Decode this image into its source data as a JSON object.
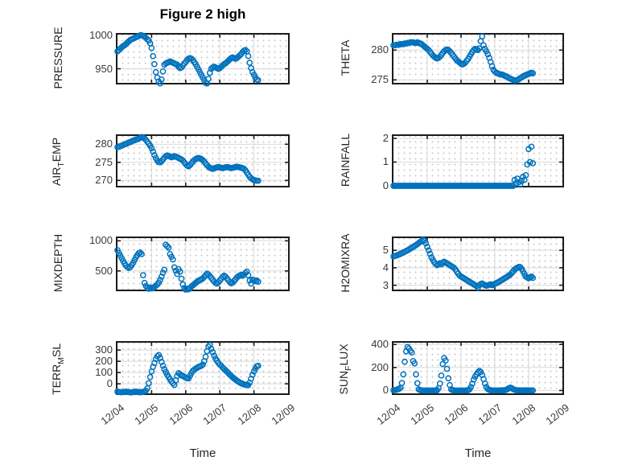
{
  "figure": {
    "title": "Figure 2 high",
    "xlabel": "Time",
    "marker_color": "#0072BD",
    "axis_color": "#1c1c1c",
    "grid_color": "#d9d9d9",
    "text_color": "#3a3a3a",
    "x_tick_labels": [
      "12/04",
      "12/05",
      "12/06",
      "12/07",
      "12/08",
      "12/09"
    ],
    "x_range_days": [
      0,
      5
    ],
    "grid": true,
    "minor_grid": true
  },
  "chart_data": [
    {
      "type": "scatter",
      "id": "pressure",
      "ylabel": {
        "pre": "PRESSURE",
        "sub": "",
        "post": ""
      },
      "yticks": [
        950,
        1000
      ],
      "ylim": [
        929,
        1001
      ],
      "x_hours_start": 0,
      "x_hours_step": 1,
      "values": [
        976,
        978,
        980,
        982,
        984,
        985,
        987,
        989,
        991,
        993,
        994,
        995,
        996,
        997,
        998,
        999,
        1000,
        1000,
        999,
        998,
        996,
        994,
        992,
        988,
        981,
        969,
        957,
        945,
        937,
        931,
        928,
        934,
        946,
        956,
        958,
        959,
        960,
        961,
        960,
        959,
        958,
        957,
        956,
        953,
        951,
        952,
        955,
        958,
        960,
        963,
        965,
        966,
        965,
        963,
        960,
        957,
        953,
        949,
        945,
        941,
        937,
        933,
        929,
        928,
        935,
        944,
        950,
        952,
        953,
        952,
        951,
        950,
        951,
        953,
        955,
        957,
        958,
        960,
        962,
        964,
        966,
        967,
        966,
        965,
        966,
        968,
        970,
        972,
        975,
        977,
        978,
        976,
        969,
        959,
        951,
        945,
        941,
        937,
        934,
        933
      ]
    },
    {
      "type": "scatter",
      "id": "theta",
      "ylabel": {
        "pre": "THETA",
        "sub": "",
        "post": ""
      },
      "yticks": [
        275,
        280
      ],
      "ylim": [
        274.5,
        282.6
      ],
      "x_hours_start": 0,
      "x_hours_step": 1,
      "values": [
        280.8,
        280.8,
        280.9,
        280.9,
        280.9,
        281.0,
        281.0,
        281.0,
        281.1,
        281.1,
        281.2,
        281.2,
        281.3,
        281.3,
        281.3,
        281.2,
        281.2,
        281.3,
        281.2,
        281.1,
        281.0,
        280.8,
        280.6,
        280.4,
        280.2,
        280.0,
        279.7,
        279.4,
        279.1,
        278.9,
        278.7,
        278.6,
        278.7,
        278.9,
        279.2,
        279.5,
        279.8,
        280.0,
        280.1,
        280.0,
        279.8,
        279.5,
        279.2,
        278.9,
        278.6,
        278.3,
        278.1,
        277.9,
        277.7,
        277.6,
        277.7,
        277.9,
        278.2,
        278.5,
        278.9,
        279.3,
        279.7,
        280.0,
        280.2,
        280.1,
        280.0,
        280.3,
        281.5,
        282.3,
        280.8,
        280.2,
        279.8,
        279.3,
        278.7,
        278.0,
        277.3,
        276.7,
        276.4,
        276.2,
        276.1,
        276.0,
        275.9,
        275.9,
        275.8,
        275.7,
        275.6,
        275.5,
        275.3,
        275.2,
        275.1,
        275.0,
        274.9,
        274.9,
        275.0,
        275.1,
        275.3,
        275.4,
        275.6,
        275.7,
        275.8,
        275.9,
        276.0,
        276.1,
        276.2,
        276.1
      ]
    },
    {
      "type": "scatter",
      "id": "air_temp",
      "ylabel": {
        "pre": "AIR",
        "sub": "T",
        "post": "EMP"
      },
      "yticks": [
        270,
        275,
        280
      ],
      "ylim": [
        268.5,
        282.3
      ],
      "x_hours_start": 0,
      "x_hours_step": 1,
      "values": [
        279.2,
        279.3,
        279.5,
        279.6,
        279.8,
        280.0,
        280.1,
        280.3,
        280.5,
        280.6,
        280.8,
        281.0,
        281.1,
        281.3,
        281.4,
        281.6,
        281.8,
        282.0,
        281.9,
        281.6,
        281.2,
        280.7,
        280.2,
        279.6,
        278.9,
        278.0,
        277.0,
        276.2,
        275.5,
        275.1,
        275.0,
        275.3,
        275.8,
        276.3,
        276.7,
        276.9,
        276.8,
        276.6,
        276.4,
        276.5,
        276.7,
        276.6,
        276.4,
        276.2,
        276.0,
        275.8,
        275.5,
        275.0,
        274.5,
        274.1,
        273.9,
        274.2,
        274.7,
        275.2,
        275.6,
        275.9,
        276.1,
        276.2,
        276.1,
        275.9,
        275.6,
        275.2,
        274.7,
        274.2,
        273.8,
        273.5,
        273.3,
        273.2,
        273.3,
        273.5,
        273.6,
        273.7,
        273.6,
        273.5,
        273.4,
        273.5,
        273.6,
        273.7,
        273.6,
        273.5,
        273.4,
        273.5,
        273.6,
        273.7,
        273.8,
        273.7,
        273.6,
        273.5,
        273.4,
        273.2,
        272.8,
        272.2,
        271.6,
        271.0,
        270.6,
        270.3,
        270.1,
        270.0,
        269.9,
        269.9
      ]
    },
    {
      "type": "scatter",
      "id": "rainfall",
      "ylabel": {
        "pre": "RAINFALL",
        "sub": "",
        "post": ""
      },
      "yticks": [
        0,
        1,
        2
      ],
      "ylim": [
        0,
        2.1
      ],
      "x_hours_start": 0,
      "x_hours_step": 1,
      "values": [
        0,
        0,
        0,
        0,
        0,
        0,
        0,
        0,
        0,
        0,
        0,
        0,
        0,
        0,
        0,
        0,
        0,
        0,
        0,
        0,
        0,
        0,
        0,
        0,
        0,
        0,
        0,
        0,
        0,
        0,
        0,
        0,
        0,
        0,
        0,
        0,
        0,
        0,
        0,
        0,
        0,
        0,
        0,
        0,
        0,
        0,
        0,
        0,
        0,
        0,
        0,
        0,
        0,
        0,
        0,
        0,
        0,
        0,
        0,
        0,
        0,
        0,
        0,
        0,
        0,
        0,
        0,
        0,
        0,
        0,
        0,
        0,
        0,
        0,
        0,
        0,
        0,
        0,
        0,
        0,
        0,
        0,
        0,
        0,
        0,
        0,
        0.25,
        0.1,
        0.3,
        0.15,
        0.05,
        0.2,
        0.38,
        0.25,
        0.45,
        0.9,
        1.55,
        1.0,
        1.65,
        0.95
      ]
    },
    {
      "type": "scatter",
      "id": "mixdepth",
      "ylabel": {
        "pre": "MIXDEPTH",
        "sub": "",
        "post": ""
      },
      "yticks": [
        500,
        1000
      ],
      "ylim": [
        190,
        1045
      ],
      "x_hours_start": 0,
      "x_hours_step": 1,
      "values": [
        845,
        800,
        755,
        710,
        665,
        625,
        590,
        565,
        550,
        565,
        595,
        635,
        680,
        725,
        765,
        795,
        805,
        780,
        430,
        300,
        250,
        220,
        205,
        225,
        210,
        215,
        235,
        255,
        275,
        305,
        350,
        405,
        470,
        520,
        935,
        910,
        885,
        780,
        735,
        690,
        560,
        505,
        450,
        530,
        490,
        370,
        275,
        215,
        190,
        205,
        195,
        215,
        240,
        260,
        280,
        300,
        320,
        335,
        350,
        360,
        375,
        400,
        430,
        455,
        440,
        415,
        385,
        355,
        325,
        300,
        290,
        310,
        340,
        370,
        400,
        420,
        405,
        375,
        345,
        315,
        295,
        305,
        330,
        360,
        390,
        410,
        425,
        435,
        420,
        440,
        465,
        490,
        430,
        340,
        290,
        355,
        345,
        330,
        340,
        320
      ]
    },
    {
      "type": "scatter",
      "id": "h2omixra",
      "ylabel": {
        "pre": "H2OMIXRA",
        "sub": "",
        "post": ""
      },
      "yticks": [
        3,
        4,
        5
      ],
      "ylim": [
        2.75,
        5.7
      ],
      "x_hours_start": 0,
      "x_hours_step": 1,
      "values": [
        4.65,
        4.68,
        4.7,
        4.73,
        4.76,
        4.8,
        4.84,
        4.88,
        4.92,
        4.96,
        5.0,
        5.05,
        5.1,
        5.15,
        5.2,
        5.25,
        5.3,
        5.36,
        5.42,
        5.48,
        5.54,
        5.6,
        5.55,
        5.4,
        5.2,
        5.0,
        4.8,
        4.6,
        4.45,
        4.32,
        4.22,
        4.15,
        4.2,
        4.26,
        4.2,
        4.3,
        4.35,
        4.3,
        4.25,
        4.2,
        4.15,
        4.1,
        4.05,
        4.0,
        3.9,
        3.78,
        3.66,
        3.56,
        3.5,
        3.45,
        3.4,
        3.35,
        3.3,
        3.25,
        3.2,
        3.15,
        3.1,
        3.05,
        3.0,
        2.95,
        2.87,
        3.0,
        3.07,
        3.1,
        3.05,
        3.0,
        2.97,
        3.0,
        3.03,
        3.05,
        3.0,
        3.04,
        3.08,
        3.12,
        3.16,
        3.2,
        3.25,
        3.3,
        3.35,
        3.4,
        3.45,
        3.5,
        3.56,
        3.62,
        3.7,
        3.8,
        3.9,
        3.96,
        4.0,
        4.05,
        4.04,
        3.95,
        3.8,
        3.65,
        3.5,
        3.44,
        3.4,
        3.45,
        3.5,
        3.42
      ]
    },
    {
      "type": "scatter",
      "id": "terr_msl",
      "ylabel": {
        "pre": "TERR",
        "sub": "M",
        "post": "SL"
      },
      "yticks": [
        0,
        100,
        200,
        300
      ],
      "ylim": [
        -85,
        365
      ],
      "x_hours_start": 0,
      "x_hours_step": 1,
      "values": [
        -70,
        -72,
        -74,
        -75,
        -73,
        -71,
        -70,
        -72,
        -74,
        -76,
        -75,
        -73,
        -71,
        -70,
        -72,
        -74,
        -75,
        -73,
        -71,
        -68,
        -60,
        -40,
        5,
        60,
        110,
        150,
        185,
        220,
        245,
        255,
        230,
        195,
        160,
        130,
        105,
        80,
        60,
        40,
        20,
        5,
        -10,
        30,
        70,
        95,
        85,
        75,
        70,
        62,
        55,
        50,
        48,
        70,
        95,
        115,
        125,
        135,
        142,
        150,
        155,
        160,
        170,
        200,
        240,
        290,
        330,
        345,
        310,
        280,
        250,
        225,
        205,
        185,
        170,
        160,
        145,
        132,
        120,
        108,
        95,
        82,
        70,
        58,
        48,
        38,
        28,
        20,
        12,
        5,
        0,
        -5,
        -8,
        -10,
        -12,
        10,
        45,
        80,
        110,
        135,
        155,
        160
      ]
    },
    {
      "type": "scatter",
      "id": "sun_flux",
      "ylabel": {
        "pre": "SUN",
        "sub": "F",
        "post": "LUX"
      },
      "yticks": [
        0,
        200,
        400
      ],
      "ylim": [
        -25,
        415
      ],
      "x_hours_start": 0,
      "x_hours_step": 1,
      "values": [
        2,
        4,
        6,
        10,
        15,
        25,
        65,
        140,
        250,
        340,
        378,
        365,
        345,
        330,
        255,
        235,
        140,
        63,
        10,
        3,
        1,
        0,
        0,
        0,
        0,
        0,
        0,
        0,
        0,
        0,
        1,
        3,
        20,
        60,
        130,
        230,
        282,
        260,
        188,
        106,
        47,
        10,
        3,
        1,
        0,
        0,
        0,
        0,
        0,
        0,
        0,
        0,
        1,
        3,
        10,
        30,
        60,
        95,
        120,
        140,
        158,
        170,
        160,
        135,
        100,
        60,
        30,
        12,
        5,
        2,
        1,
        0,
        0,
        0,
        0,
        0,
        1,
        1,
        2,
        3,
        5,
        12,
        20,
        25,
        20,
        12,
        6,
        3,
        2,
        1,
        1,
        0,
        0,
        1,
        0,
        1,
        0,
        0,
        1,
        0
      ]
    }
  ]
}
